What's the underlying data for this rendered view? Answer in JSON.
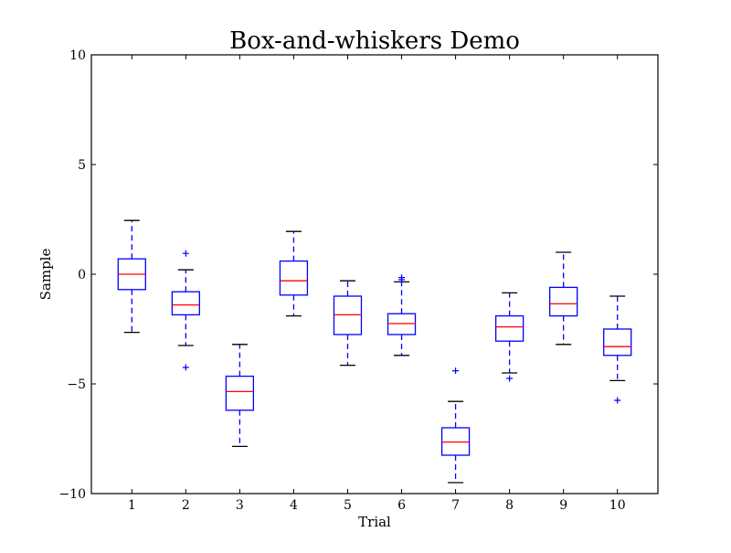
{
  "chart_data": {
    "type": "box",
    "title": "Box-and-whiskers Demo",
    "xlabel": "Trial",
    "ylabel": "Sample",
    "ylim": [
      -10,
      10
    ],
    "yticks": [
      -10,
      -5,
      0,
      5,
      10
    ],
    "ytick_labels": [
      "−10",
      "−5",
      "0",
      "5",
      "10"
    ],
    "categories": [
      "1",
      "2",
      "3",
      "4",
      "5",
      "6",
      "7",
      "8",
      "9",
      "10"
    ],
    "grid": false,
    "colors": {
      "box": "#0000ff",
      "median": "#ff0000",
      "whisker_cap": "#000000",
      "flier": "#0000ff"
    },
    "boxes": [
      {
        "label": "1",
        "whisker_low": -2.65,
        "q1": -0.7,
        "median": 0.0,
        "q3": 0.7,
        "whisker_high": 2.45,
        "fliers": []
      },
      {
        "label": "2",
        "whisker_low": -3.25,
        "q1": -1.85,
        "median": -1.4,
        "q3": -0.8,
        "whisker_high": 0.2,
        "fliers": [
          0.95,
          -4.25
        ]
      },
      {
        "label": "3",
        "whisker_low": -7.85,
        "q1": -6.2,
        "median": -5.35,
        "q3": -4.65,
        "whisker_high": -3.2,
        "fliers": []
      },
      {
        "label": "4",
        "whisker_low": -1.9,
        "q1": -0.95,
        "median": -0.3,
        "q3": 0.6,
        "whisker_high": 1.95,
        "fliers": []
      },
      {
        "label": "5",
        "whisker_low": -4.15,
        "q1": -2.75,
        "median": -1.85,
        "q3": -1.0,
        "whisker_high": -0.3,
        "fliers": []
      },
      {
        "label": "6",
        "whisker_low": -3.7,
        "q1": -2.75,
        "median": -2.25,
        "q3": -1.8,
        "whisker_high": -0.35,
        "fliers": [
          -0.15,
          -0.25
        ]
      },
      {
        "label": "7",
        "whisker_low": -9.5,
        "q1": -8.25,
        "median": -7.65,
        "q3": -7.0,
        "whisker_high": -5.8,
        "fliers": [
          -4.4
        ]
      },
      {
        "label": "8",
        "whisker_low": -4.5,
        "q1": -3.05,
        "median": -2.4,
        "q3": -1.9,
        "whisker_high": -0.85,
        "fliers": [
          -4.75
        ]
      },
      {
        "label": "9",
        "whisker_low": -3.2,
        "q1": -1.9,
        "median": -1.35,
        "q3": -0.6,
        "whisker_high": 1.0,
        "fliers": []
      },
      {
        "label": "10",
        "whisker_low": -4.85,
        "q1": -3.7,
        "median": -3.3,
        "q3": -2.5,
        "whisker_high": -1.0,
        "fliers": [
          -5.75
        ]
      }
    ]
  }
}
